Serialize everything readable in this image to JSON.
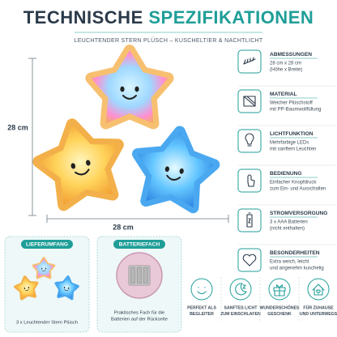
{
  "header": {
    "title_part1": "TECHNISCHE",
    "title_part2": "SPEZIFIKATIONEN",
    "subtitle": "LEUCHTENDER STERN PLÜSCH – KUSCHELTIER & NACHTLICHT"
  },
  "dimensions": {
    "height": "28 cm",
    "width": "28 cm"
  },
  "specs": [
    {
      "title": "ABMESSUNGEN",
      "lines": [
        "28 cm x 28 cm",
        "(Höhe x Breite)"
      ]
    },
    {
      "title": "MATERIAL",
      "lines": [
        "Weicher Plüschstoff",
        "mit PP-Baumwollfüllung"
      ]
    },
    {
      "title": "LICHTFUNKTION",
      "lines": [
        "Mehrfarbige LEDs",
        "mit sanftem Leuchten"
      ]
    },
    {
      "title": "BEDIENUNG",
      "lines": [
        "Einfacher Knopfdruck",
        "zum Ein- und Ausschalten"
      ]
    },
    {
      "title": "STROMVERSORGUNG",
      "lines": [
        "3 x AAA Batterien",
        "(nicht enthalten)"
      ]
    },
    {
      "title": "BESONDERHEITEN",
      "lines": [
        "Extra weich, leicht",
        "und angenehm kuschelig"
      ]
    }
  ],
  "boxes": [
    {
      "title": "LIEFERUMFANG",
      "lines": [
        "3 x Leuchtender Stern Plüsch"
      ]
    },
    {
      "title": "BATTERIEFACH",
      "lines": [
        "Praktisches Fach für die",
        "Batterien auf der Rückseite"
      ]
    }
  ],
  "features": [
    {
      "lines": [
        "PERFEKT ALS",
        "BEGLEITER"
      ]
    },
    {
      "lines": [
        "SANFTES LICHT",
        "ZUM EINSCHLAFEN"
      ]
    },
    {
      "lines": [
        "WUNDERSCHÖNES",
        "GESCHENK"
      ]
    },
    {
      "lines": [
        "FÜR ZUHAUSE",
        "UND UNTERWEGS"
      ]
    }
  ]
}
